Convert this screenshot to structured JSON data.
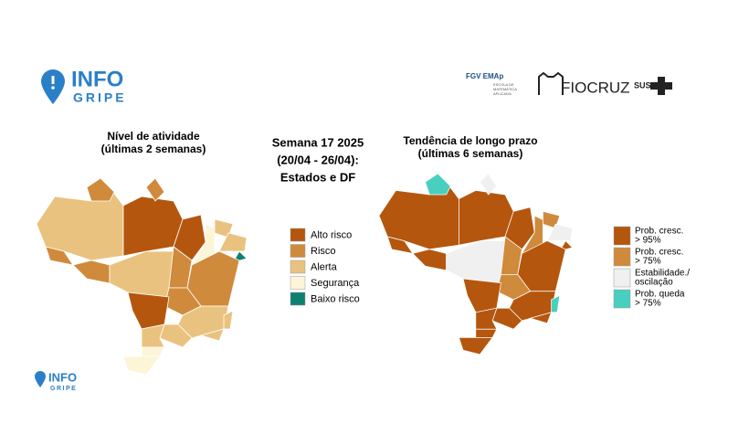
{
  "header": {
    "logo_info": "INFO",
    "logo_gripe": "GRIPE",
    "fgv": "FGV EMAp",
    "fgv_sub": [
      "ESCOLA DE",
      "MATEMÁTICA",
      "APLICADA"
    ],
    "fiocruz": "FIOCRUZ",
    "sus": "SUS"
  },
  "left_map": {
    "title": [
      "Nível de atividade",
      "(últimas 2 semanas)"
    ],
    "legend": [
      {
        "label": "Alto risco",
        "color": "#b5560e"
      },
      {
        "label": "Risco",
        "color": "#d08a3c"
      },
      {
        "label": "Alerta",
        "color": "#eac27f"
      },
      {
        "label": "Segurança",
        "color": "#fdf5d8"
      },
      {
        "label": "Baixo risco",
        "color": "#0f7f6f"
      }
    ]
  },
  "center": {
    "lines": [
      "Semana 17 2025",
      "(20/04 - 26/04):",
      "Estados e DF"
    ]
  },
  "right_map": {
    "title": [
      "Tendência de longo prazo",
      "(últimas 6 semanas)"
    ],
    "legend": [
      {
        "label": [
          "Prob. cresc.",
          "> 95%"
        ],
        "color": "#b5560e"
      },
      {
        "label": [
          "Prob. cresc.",
          "> 75%"
        ],
        "color": "#d08a3c"
      },
      {
        "label": [
          "Estabilidade./",
          "oscilação"
        ],
        "color": "#f0f0f0"
      },
      {
        "label": [
          "Prob. queda",
          "> 75%"
        ],
        "color": "#48cfc0"
      }
    ]
  },
  "footer": {
    "logo_info": "INFO",
    "logo_gripe": "GRIPE"
  }
}
